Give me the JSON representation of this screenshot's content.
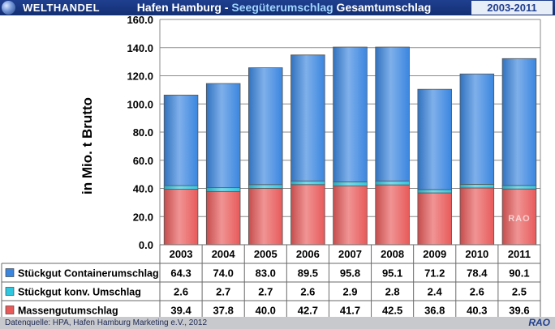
{
  "header": {
    "brand": "WELTHANDEL",
    "title_part1": "Hafen Hamburg - ",
    "title_highlight": "Seegüterumschlag",
    "title_part2": " Gesamtumschlag",
    "period": "2003-2011"
  },
  "footer": {
    "source": "Datenquelle: HPA, Hafen Hamburg Marketing e.V., 2012",
    "logo": "RAO"
  },
  "watermark": "RAO",
  "chart_data": {
    "type": "bar",
    "stacked": true,
    "ylabel": "in Mio. t Brutto",
    "ylim": [
      0,
      160
    ],
    "yticks": [
      "0.0",
      "20.0",
      "40.0",
      "60.0",
      "80.0",
      "100.0",
      "120.0",
      "140.0",
      "160.0"
    ],
    "grid": true,
    "legend": "table-left",
    "categories": [
      "2003",
      "2004",
      "2005",
      "2006",
      "2007",
      "2008",
      "2009",
      "2010",
      "2011"
    ],
    "series": [
      {
        "name": "Massengutumschlag",
        "color": "#e85a5a",
        "values": [
          39.4,
          37.8,
          40.0,
          42.7,
          41.7,
          42.5,
          36.8,
          40.3,
          39.6
        ],
        "labels": [
          "39.4",
          "37.8",
          "40.0",
          "42.7",
          "41.7",
          "42.5",
          "36.8",
          "40.3",
          "39.6"
        ]
      },
      {
        "name": "Stückgut konv. Umschlag",
        "color": "#2fc6e0",
        "values": [
          2.6,
          2.7,
          2.7,
          2.6,
          2.9,
          2.8,
          2.4,
          2.6,
          2.5
        ],
        "labels": [
          "2.6",
          "2.7",
          "2.7",
          "2.6",
          "2.9",
          "2.8",
          "2.4",
          "2.6",
          "2.5"
        ]
      },
      {
        "name": "Stückgut Containerumschlag",
        "color": "#3a86df",
        "values": [
          64.3,
          74.0,
          83.0,
          89.5,
          95.8,
          95.1,
          71.2,
          78.4,
          90.1
        ],
        "labels": [
          "64.3",
          "74.0",
          "83.0",
          "89.5",
          "95.8",
          "95.1",
          "71.2",
          "78.4",
          "90.1"
        ]
      }
    ],
    "table_order": [
      2,
      1,
      0
    ]
  }
}
